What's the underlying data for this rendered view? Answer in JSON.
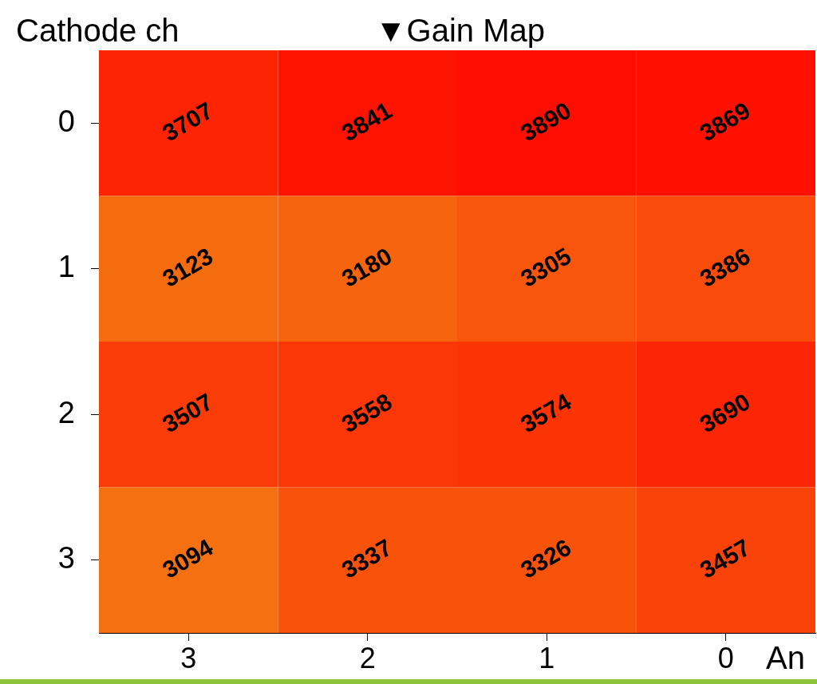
{
  "chart_data": {
    "type": "heatmap",
    "title": "▼Gain Map",
    "xlabel": "An",
    "ylabel": "Cathode ch",
    "categories": [
      "3",
      "2",
      "1",
      "0"
    ],
    "y_categories": [
      "0",
      "1",
      "2",
      "3"
    ],
    "cells": [
      [
        3707,
        3841,
        3890,
        3869
      ],
      [
        3123,
        3180,
        3305,
        3386
      ],
      [
        3507,
        3558,
        3574,
        3690
      ],
      [
        3094,
        3337,
        3326,
        3457
      ]
    ],
    "data_labels": true
  }
}
